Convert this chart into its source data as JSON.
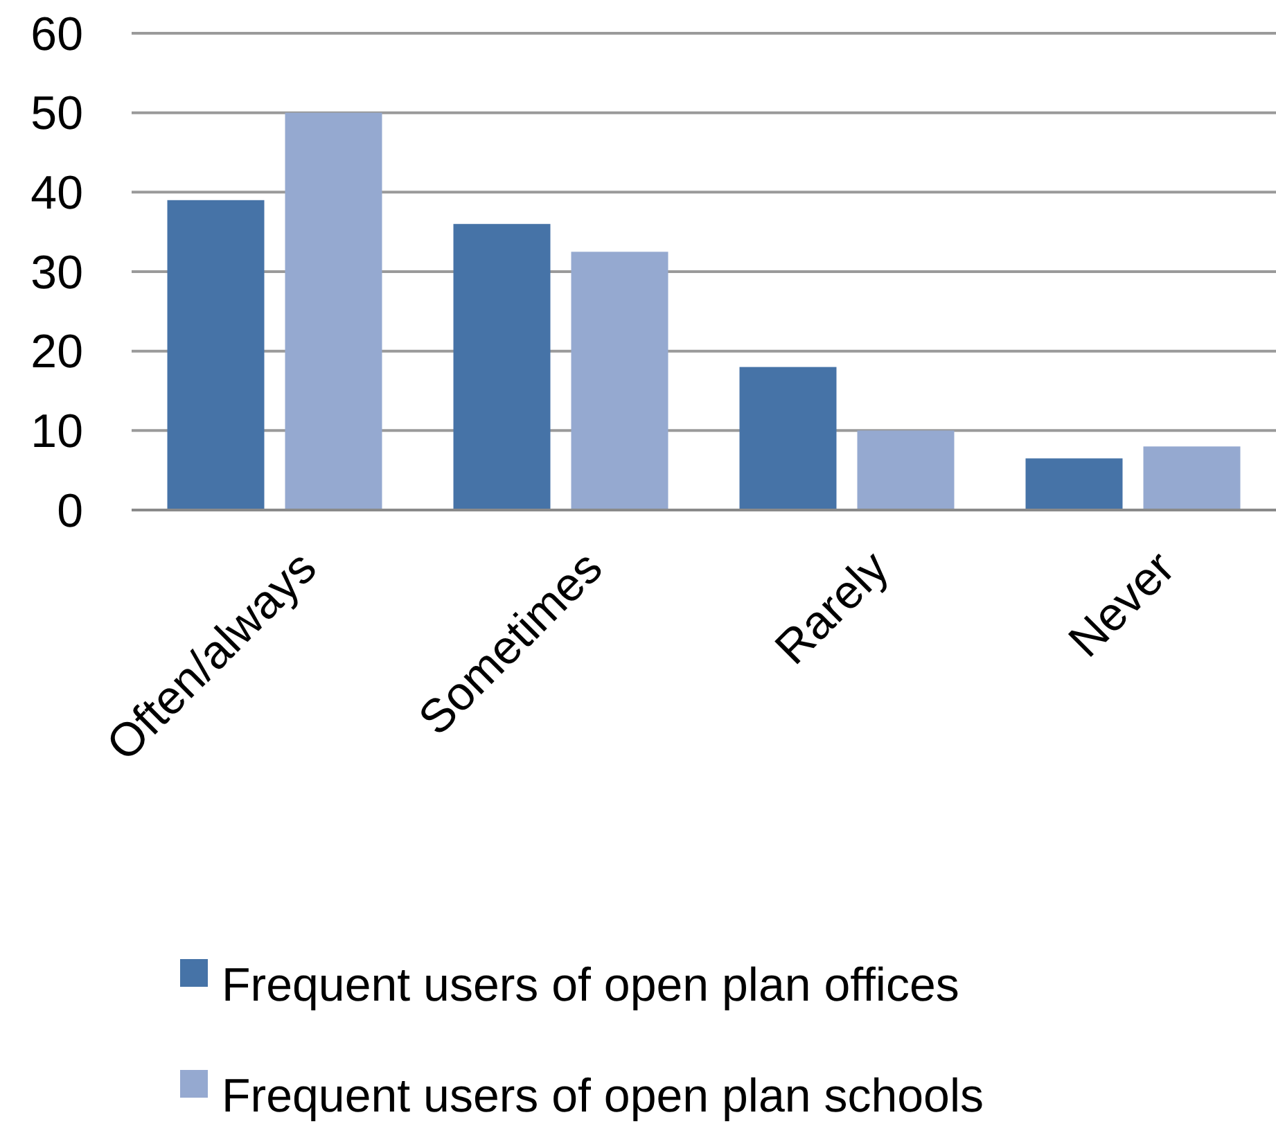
{
  "chart_data": {
    "type": "bar",
    "categories": [
      "Often/always",
      "Sometimes",
      "Rarely",
      "Never"
    ],
    "series": [
      {
        "name": "Frequent users of open plan offices",
        "color": "#4673a7",
        "values": [
          39,
          36,
          18,
          6.5
        ]
      },
      {
        "name": "Frequent users of open plan schools",
        "color": "#95a9d0",
        "values": [
          50,
          32.5,
          10,
          8
        ]
      }
    ],
    "ylim": [
      0,
      60
    ],
    "yticks": [
      0,
      10,
      20,
      30,
      40,
      50,
      60
    ],
    "grid": "y",
    "legend": "bottom"
  }
}
